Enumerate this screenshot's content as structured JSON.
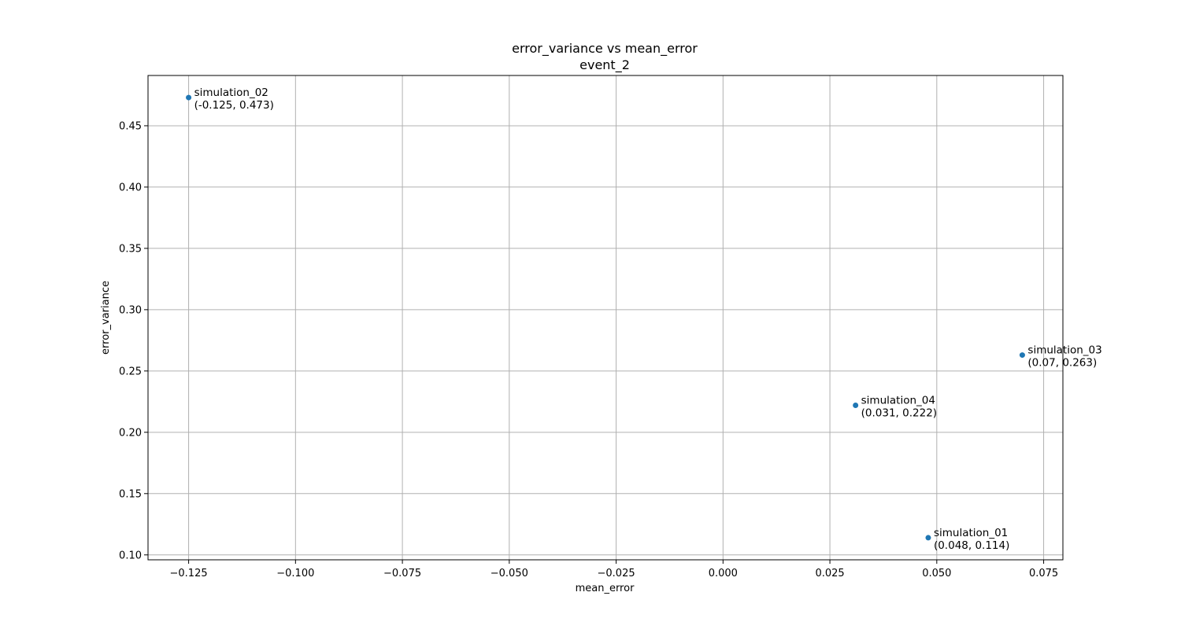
{
  "chart_data": {
    "type": "scatter",
    "title": "error_variance vs mean_error",
    "subtitle": "event_2",
    "xlabel": "mean_error",
    "ylabel": "error_variance",
    "xlim": [
      -0.1345,
      0.0795
    ],
    "ylim": [
      0.096,
      0.491
    ],
    "xticks": [
      -0.125,
      -0.1,
      -0.075,
      -0.05,
      -0.025,
      0.0,
      0.025,
      0.05,
      0.075
    ],
    "xtick_labels": [
      "−0.125",
      "−0.100",
      "−0.075",
      "−0.050",
      "−0.025",
      "0.000",
      "0.025",
      "0.050",
      "0.075"
    ],
    "yticks": [
      0.1,
      0.15,
      0.2,
      0.25,
      0.3,
      0.35,
      0.4,
      0.45
    ],
    "ytick_labels": [
      "0.10",
      "0.15",
      "0.20",
      "0.25",
      "0.30",
      "0.35",
      "0.40",
      "0.45"
    ],
    "grid": true,
    "point_color": "#1f77b4",
    "points": [
      {
        "name": "simulation_02",
        "x": -0.125,
        "y": 0.473,
        "coord_label": "(-0.125, 0.473)"
      },
      {
        "name": "simulation_03",
        "x": 0.07,
        "y": 0.263,
        "coord_label": "(0.07, 0.263)"
      },
      {
        "name": "simulation_04",
        "x": 0.031,
        "y": 0.222,
        "coord_label": "(0.031, 0.222)"
      },
      {
        "name": "simulation_01",
        "x": 0.048,
        "y": 0.114,
        "coord_label": "(0.048, 0.114)"
      }
    ]
  }
}
